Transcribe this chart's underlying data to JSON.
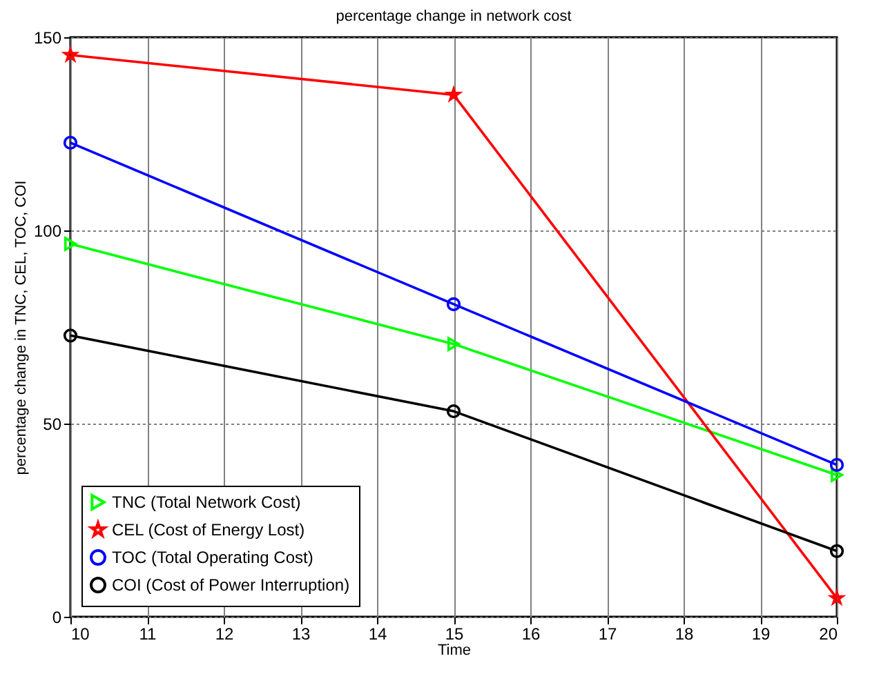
{
  "chart_data": {
    "type": "line",
    "title": "percentage change in network cost",
    "xlabel": "Time",
    "ylabel": "percentage change in TNC, CEL, TOC, COI",
    "x": [
      10,
      15,
      20
    ],
    "xlim": [
      10,
      20
    ],
    "xticks": [
      10,
      11,
      12,
      13,
      14,
      15,
      16,
      17,
      18,
      19,
      20
    ],
    "ylim": [
      0,
      150
    ],
    "yticks": [
      0,
      50,
      100,
      150
    ],
    "grid": true,
    "legend": "bottom left",
    "line_style": "solid",
    "series": [
      {
        "name": "TNC (Total Network Cost)",
        "color": "#00ff00",
        "marker": "triangle",
        "values": [
          96.5,
          70.6,
          36.7
        ]
      },
      {
        "name": "CEL (Cost of Energy Lost)",
        "color": "#ff0000",
        "marker": "star",
        "values": [
          145.4,
          135.1,
          4.8
        ]
      },
      {
        "name": "TOC (Total Operating Cost)",
        "color": "#0000ff",
        "marker": "circle",
        "values": [
          122.7,
          80.9,
          39.3
        ]
      },
      {
        "name": "COI (Cost of Power Interruption)",
        "color": "#000000",
        "marker": "circle",
        "values": [
          72.8,
          53.2,
          17
        ]
      }
    ]
  }
}
